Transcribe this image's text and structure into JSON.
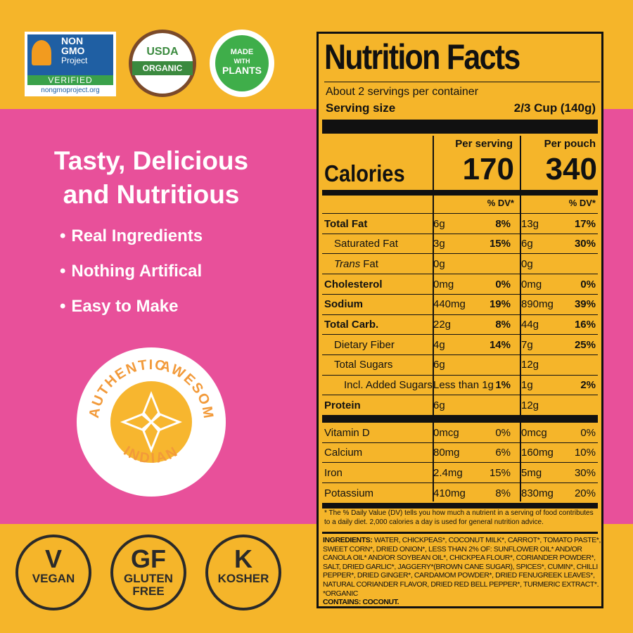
{
  "badges": {
    "non_gmo": {
      "line1": "NON",
      "line2": "GMO",
      "line3": "Project",
      "verified": "VERIFIED",
      "url": "nongmoproject.org"
    },
    "usda": {
      "top": "USDA",
      "bottom": "ORGANIC"
    },
    "plants": {
      "line1": "MADE",
      "line2": "WITH",
      "line3": "PLANTS"
    }
  },
  "headline": [
    "Tasty, Delicious",
    "and Nutritious"
  ],
  "bullets": [
    "Real Ingredients",
    "Nothing Artifical",
    "Easy to Make"
  ],
  "seal": {
    "top_left": "AUTHENTIC",
    "top_right": "AWESOME",
    "bottom": "INDIAN"
  },
  "diet_badges": [
    {
      "symbol": "V",
      "label": [
        "VEGAN"
      ]
    },
    {
      "symbol": "GF",
      "label": [
        "GLUTEN",
        "FREE"
      ]
    },
    {
      "symbol": "K",
      "label": [
        "KOSHER"
      ]
    }
  ],
  "nutrition": {
    "title": "Nutrition Facts",
    "servings": "About 2 servings per container",
    "serving_size_label": "Serving size",
    "serving_size_value": "2/3 Cup (140g)",
    "column_headers": [
      "Per serving",
      "Per pouch"
    ],
    "calories_label": "Calories",
    "calories": [
      "170",
      "340"
    ],
    "dv_header": "% DV*",
    "nutrients": [
      {
        "name": "Total Fat",
        "bold": true,
        "indent": 0,
        "serving": [
          "6g",
          "8%"
        ],
        "pouch": [
          "13g",
          "17%"
        ]
      },
      {
        "name": "Saturated Fat",
        "bold": false,
        "indent": 1,
        "serving": [
          "3g",
          "15%"
        ],
        "pouch": [
          "6g",
          "30%"
        ]
      },
      {
        "name_italic": "Trans",
        "name": "Fat",
        "bold": false,
        "indent": 1,
        "serving": [
          "0g",
          null
        ],
        "pouch": [
          "0g",
          null
        ]
      },
      {
        "name": "Cholesterol",
        "bold": true,
        "indent": 0,
        "serving": [
          "0mg",
          "0%"
        ],
        "pouch": [
          "0mg",
          "0%"
        ]
      },
      {
        "name": "Sodium",
        "bold": true,
        "indent": 0,
        "serving": [
          "440mg",
          "19%"
        ],
        "pouch": [
          "890mg",
          "39%"
        ]
      },
      {
        "name": "Total Carb.",
        "bold": true,
        "indent": 0,
        "serving": [
          "22g",
          "8%"
        ],
        "pouch": [
          "44g",
          "16%"
        ]
      },
      {
        "name": "Dietary Fiber",
        "bold": false,
        "indent": 1,
        "serving": [
          "4g",
          "14%"
        ],
        "pouch": [
          "7g",
          "25%"
        ]
      },
      {
        "name": "Total Sugars",
        "bold": false,
        "indent": 1,
        "serving": [
          "6g",
          null
        ],
        "pouch": [
          "12g",
          null
        ]
      },
      {
        "name": "Incl. Added Sugars",
        "bold": false,
        "indent": 2,
        "serving": [
          "Less than 1g",
          "1%"
        ],
        "pouch": [
          "1g",
          "2%"
        ]
      },
      {
        "name": "Protein",
        "bold": true,
        "indent": 0,
        "serving": [
          "6g",
          null
        ],
        "pouch": [
          "12g",
          null
        ]
      }
    ],
    "vitamins": [
      {
        "name": "Vitamin D",
        "serving": [
          "0mcg",
          "0%"
        ],
        "pouch": [
          "0mcg",
          "0%"
        ]
      },
      {
        "name": "Calcium",
        "serving": [
          "80mg",
          "6%"
        ],
        "pouch": [
          "160mg",
          "10%"
        ]
      },
      {
        "name": "Iron",
        "serving": [
          "2.4mg",
          "15%"
        ],
        "pouch": [
          "5mg",
          "30%"
        ]
      },
      {
        "name": "Potassium",
        "serving": [
          "410mg",
          "8%"
        ],
        "pouch": [
          "830mg",
          "20%"
        ]
      }
    ],
    "footnote": "* The % Daily Value (DV) tells you how much a nutrient in a serving of food contributes to a daily diet. 2,000 calories a day is used for general nutrition advice.",
    "ingredients_label": "INGREDIENTS:",
    "ingredients": "WATER, CHICKPEAS*, COCONUT MILK*, CARROT*, TOMATO PASTE*, SWEET CORN*, DRIED ONION*, LESS THAN 2% OF: SUNFLOWER OIL* AND/OR CANOLA OIL* AND/OR SOYBEAN OIL*, CHICKPEA FLOUR*, CORIANDER POWDER*, SALT, DRIED GARLIC*, JAGGERY*(BROWN CANE SUGAR), SPICES*, CUMIN*, CHILLI PEPPER*, DRIED GINGER*, CARDAMOM POWDER*, DRIED FENUGREEK LEAVES*, NATURAL CORIANDER FLAVOR, DRIED RED BELL PEPPER*, TURMERIC EXTRACT*.",
    "organic_note": "*ORGANIC",
    "contains": "CONTAINS: COCONUT."
  }
}
